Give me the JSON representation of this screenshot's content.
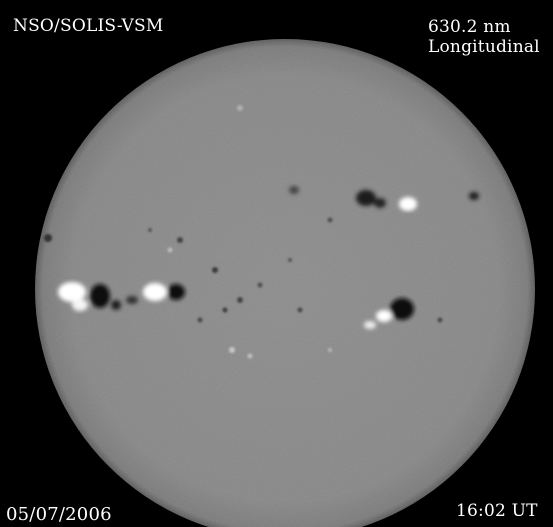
{
  "instrument": "NSO/SOLIS-VSM",
  "wavelength": "630.2 nm",
  "mode": "Longitudinal",
  "date": "05/07/2006",
  "time": "16:02 UT",
  "colors": {
    "background": "#000000",
    "disk": "#8a8a8a",
    "text": "#ffffff"
  }
}
